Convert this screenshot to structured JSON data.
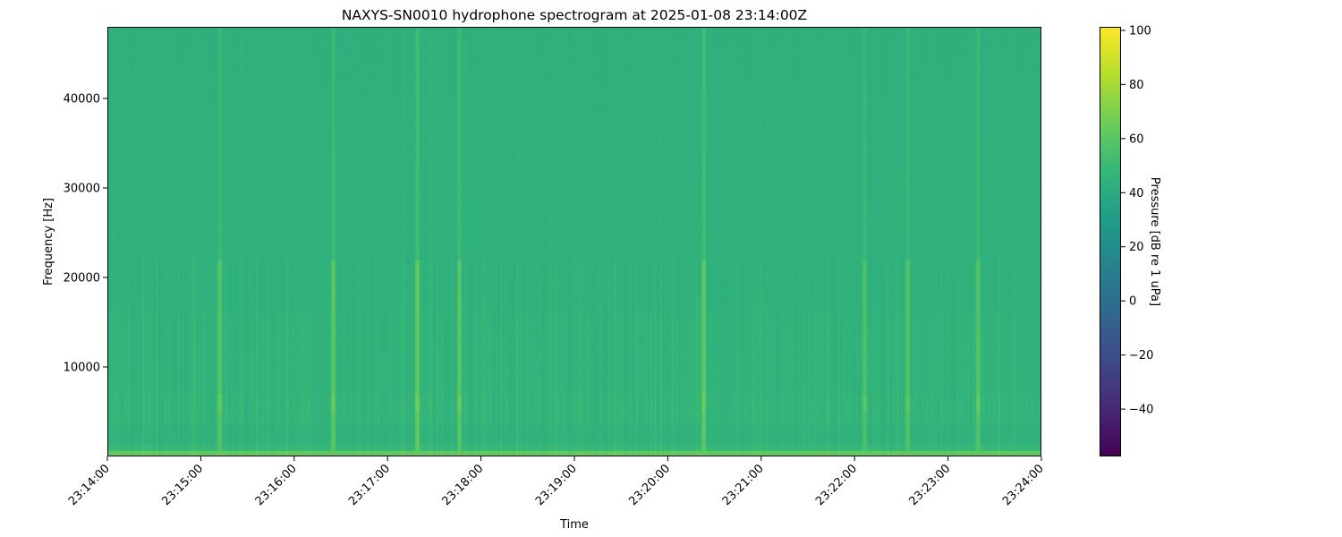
{
  "chart_data": {
    "type": "heatmap",
    "title": "NAXYS-SN0010 hydrophone spectrogram at 2025-01-08 23:14:00Z",
    "xlabel": "Time",
    "ylabel": "Frequency [Hz]",
    "x_ticks": [
      "23:14:00",
      "23:15:00",
      "23:16:00",
      "23:17:00",
      "23:18:00",
      "23:19:00",
      "23:20:00",
      "23:21:00",
      "23:22:00",
      "23:23:00",
      "23:24:00"
    ],
    "x_range": [
      "23:14:00",
      "23:24:00"
    ],
    "y_ticks": [
      10000,
      20000,
      30000,
      40000
    ],
    "ylim": [
      0,
      48000
    ],
    "colormap": "viridis",
    "colorbar": {
      "label": "Pressure [dB re 1 uPa]",
      "ticks": [
        -40,
        -20,
        0,
        20,
        40,
        60,
        80,
        100
      ],
      "range": [
        -57.5,
        101.3
      ]
    },
    "background_level_db": 45,
    "low_frequency_band_db": 62,
    "transients": [
      {
        "time": "23:15:12",
        "peak_db": 62
      },
      {
        "time": "23:16:25",
        "peak_db": 64
      },
      {
        "time": "23:17:19",
        "peak_db": 66
      },
      {
        "time": "23:17:46",
        "peak_db": 63
      },
      {
        "time": "23:20:23",
        "peak_db": 65
      },
      {
        "time": "23:22:06",
        "peak_db": 60
      },
      {
        "time": "23:22:34",
        "peak_db": 61
      },
      {
        "time": "23:23:19",
        "peak_db": 62
      }
    ]
  }
}
